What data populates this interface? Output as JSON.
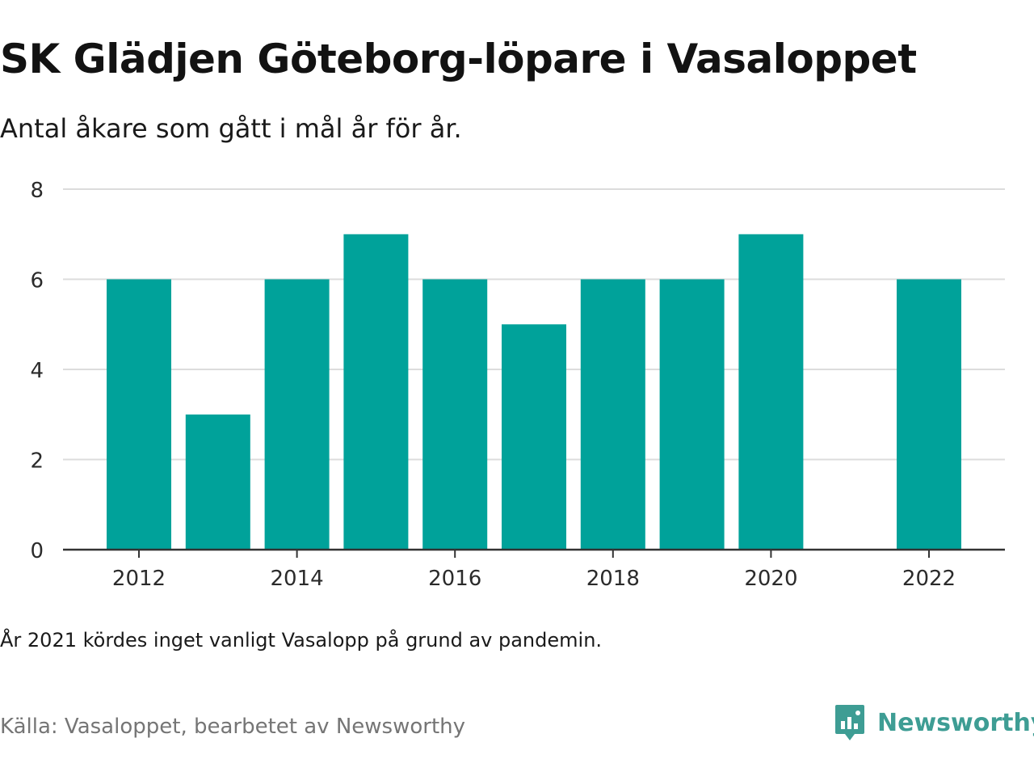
{
  "title": "SK Glädjen Göteborg-löpare i Vasaloppet",
  "subtitle": "Antal åkare som gått i mål år för år.",
  "note": "År 2021 kördes inget vanligt Vasalopp på grund av pandemin.",
  "source": "Källa: Vasaloppet, bearbetet av Newsworthy",
  "brand": {
    "name": "Newsworthy",
    "icon": "newsworthy-logo-icon",
    "color": "#3e9d94"
  },
  "chart_data": {
    "type": "bar",
    "title": "SK Glädjen Göteborg-löpare i Vasaloppet",
    "subtitle": "Antal åkare som gått i mål år för år.",
    "categories": [
      2012,
      2013,
      2014,
      2015,
      2016,
      2017,
      2018,
      2019,
      2020,
      2021,
      2022
    ],
    "values": [
      6,
      3,
      6,
      7,
      6,
      5,
      6,
      6,
      7,
      null,
      6
    ],
    "ylim": [
      0,
      8
    ],
    "yticks": [
      0,
      2,
      4,
      6,
      8
    ],
    "xticks": [
      2012,
      2014,
      2016,
      2018,
      2020,
      2022
    ],
    "xlabel": "",
    "ylabel": "",
    "grid": true,
    "bar_color": "#00a29a"
  }
}
